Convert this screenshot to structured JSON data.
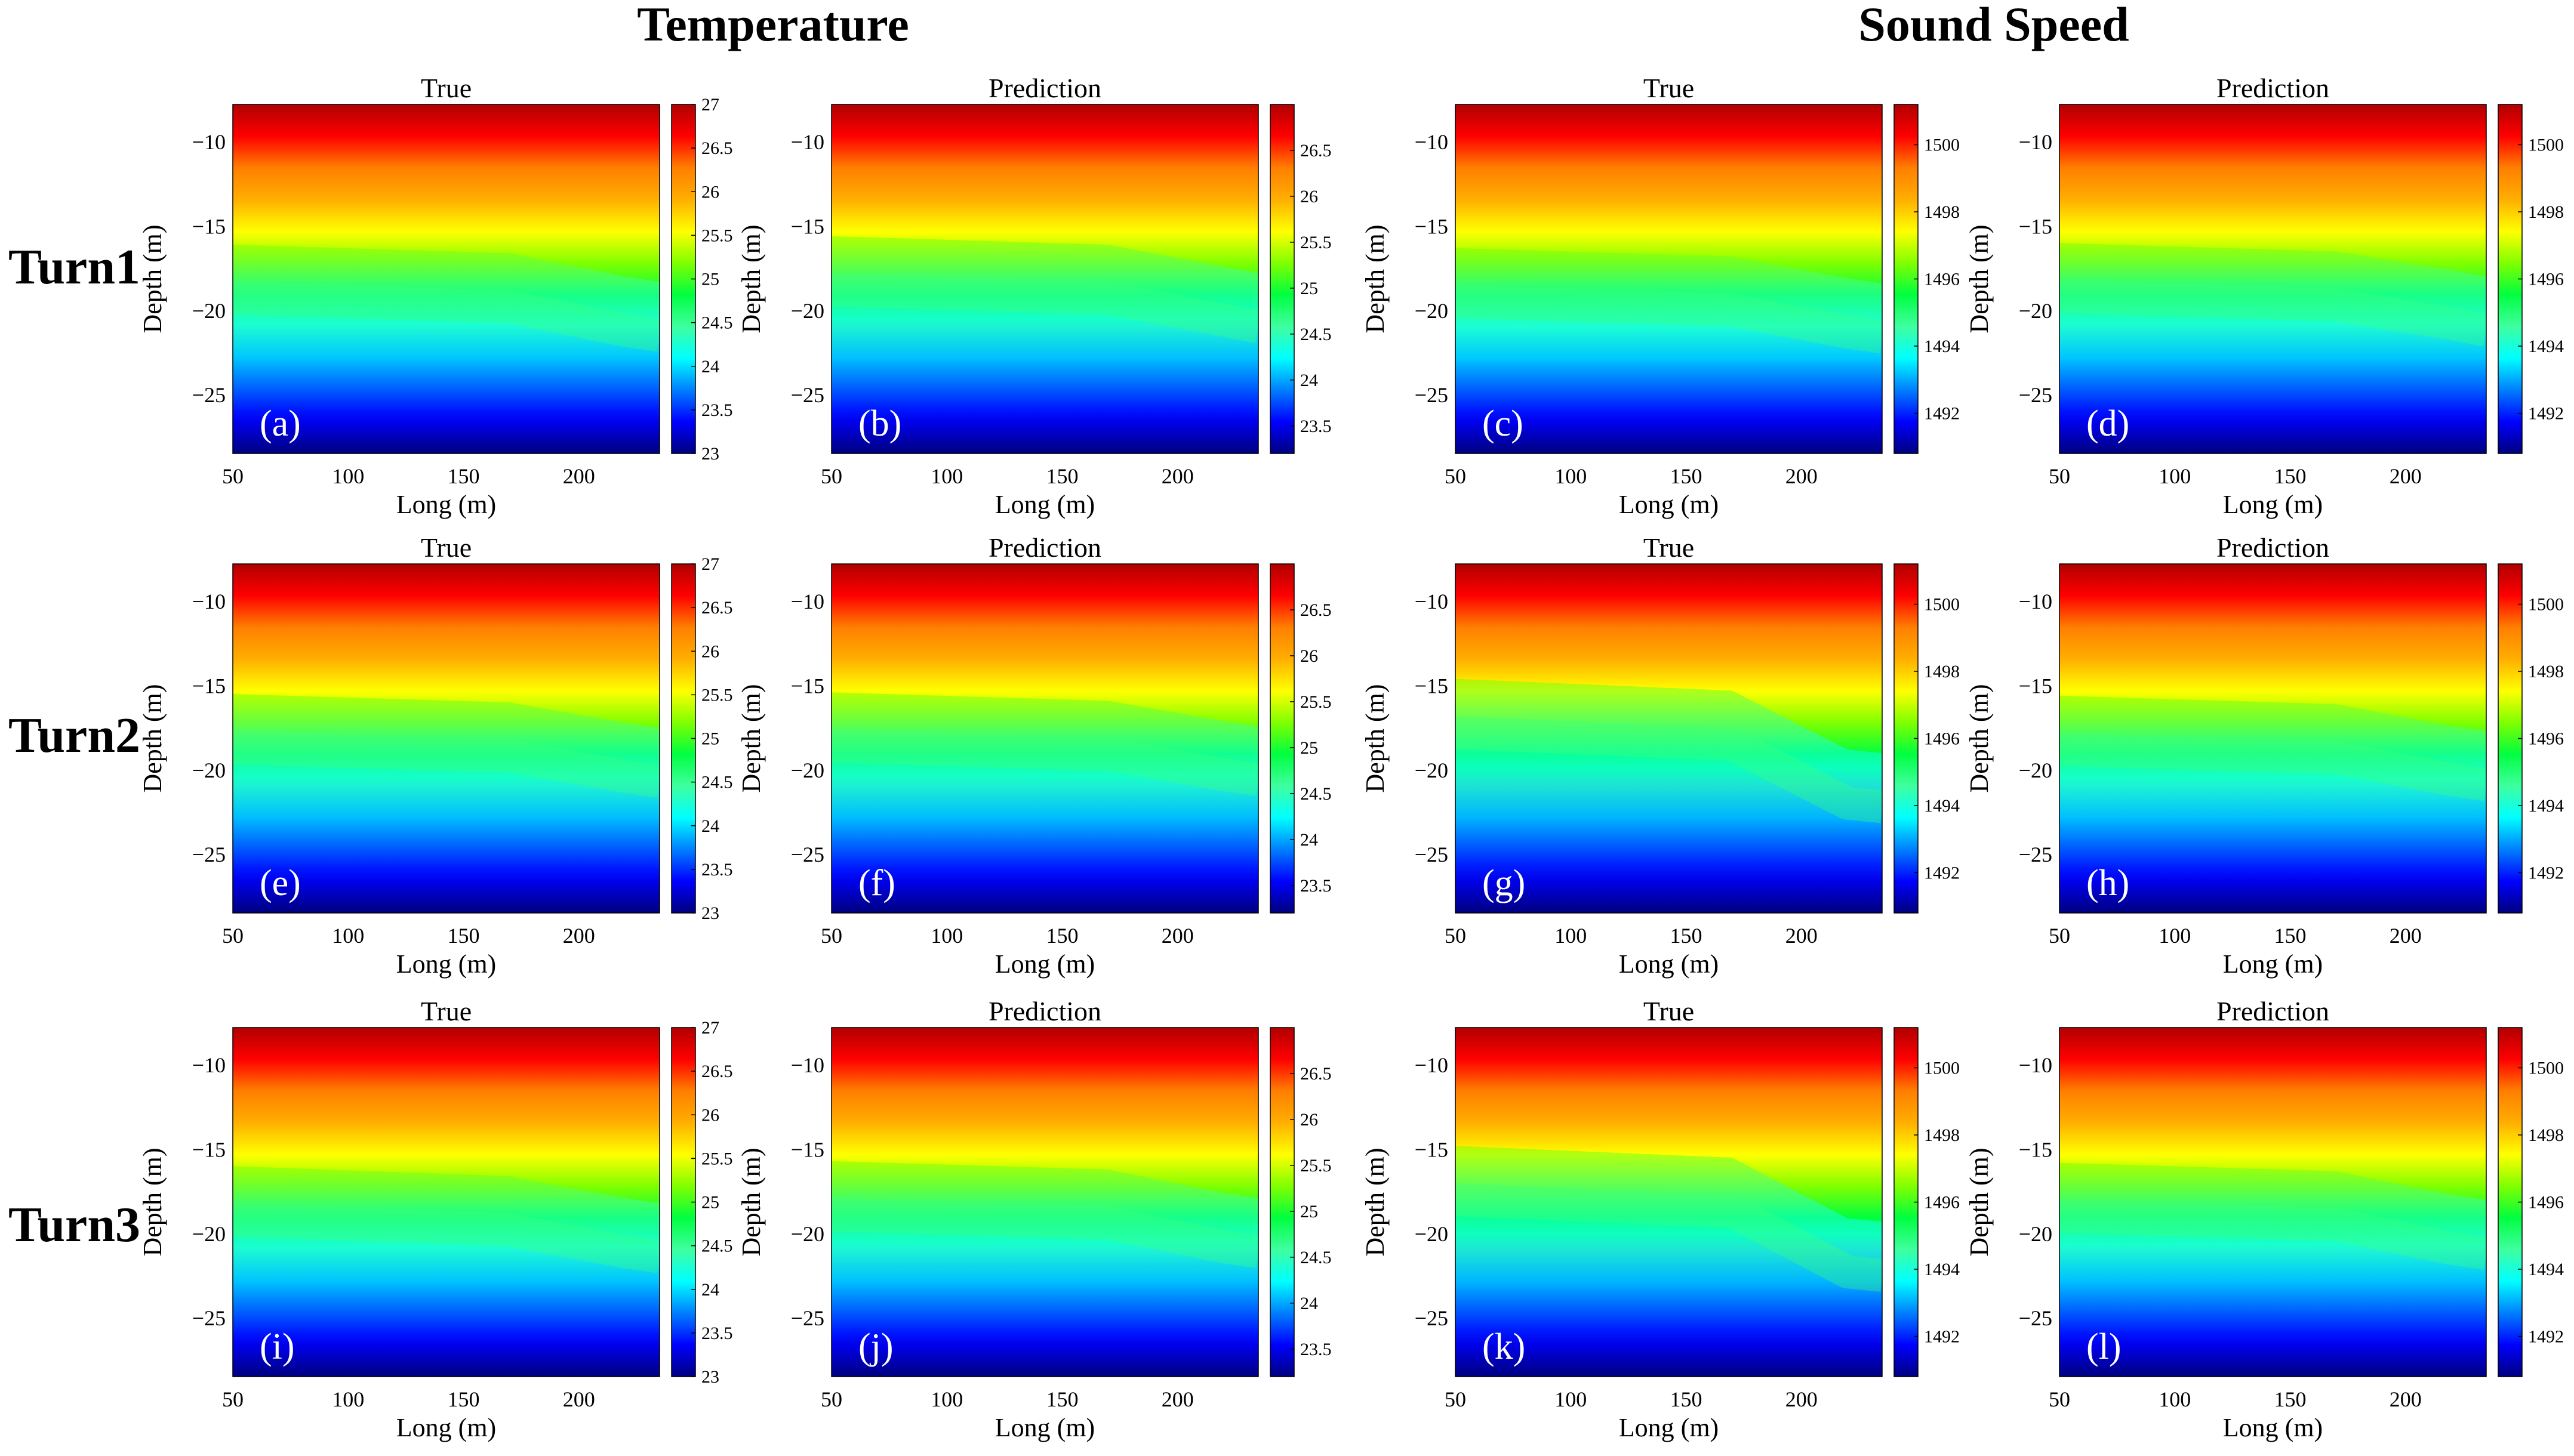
{
  "figure": {
    "group_titles": [
      "Temperature",
      "Sound Speed"
    ],
    "row_labels": [
      "Turn1",
      "Turn2",
      "Turn3"
    ],
    "colormap": [
      "#00007f",
      "#0000ff",
      "#007fff",
      "#00ffff",
      "#3fff9f",
      "#00ff40",
      "#7fff00",
      "#ffff00",
      "#ffaf00",
      "#ff7f00",
      "#ff0000",
      "#b00000"
    ]
  },
  "chart_data": [
    {
      "type": "heatmap",
      "id": "a",
      "letter": "(a)",
      "title": "True",
      "quantity": "Temperature",
      "turn": "Turn1",
      "xlabel": "Long (m)",
      "ylabel": "Depth (m)",
      "xlim": [
        50,
        235
      ],
      "ylim": [
        -28.5,
        -7.8
      ],
      "xticks": [
        50,
        100,
        150,
        200
      ],
      "yticks": [
        -10,
        -15,
        -20,
        -25
      ],
      "clim": [
        23,
        27
      ],
      "cticks": [
        23,
        23.5,
        24,
        24.5,
        25,
        25.5,
        26,
        26.5,
        27
      ],
      "front_depth": {
        "x": [
          50,
          170,
          220,
          235
        ],
        "y": [
          -19.3,
          -19.8,
          -21.2,
          -21.5
        ]
      }
    },
    {
      "type": "heatmap",
      "id": "b",
      "letter": "(b)",
      "title": "Prediction",
      "quantity": "Temperature",
      "turn": "Turn1",
      "xlabel": "Long (m)",
      "ylabel": "Depth (m)",
      "xlim": [
        50,
        235
      ],
      "ylim": [
        -28.5,
        -7.8
      ],
      "xticks": [
        50,
        100,
        150,
        200
      ],
      "yticks": [
        -10,
        -15,
        -20,
        -25
      ],
      "clim": [
        23.2,
        27
      ],
      "cticks": [
        23.5,
        24,
        24.5,
        25,
        25.5,
        26,
        26.5
      ],
      "front_depth": {
        "x": [
          50,
          170,
          220,
          235
        ],
        "y": [
          -18.8,
          -19.3,
          -20.6,
          -21.0
        ]
      }
    },
    {
      "type": "heatmap",
      "id": "c",
      "letter": "(c)",
      "title": "True",
      "quantity": "Sound Speed",
      "turn": "Turn1",
      "xlabel": "Long (m)",
      "ylabel": "Depth (m)",
      "xlim": [
        50,
        235
      ],
      "ylim": [
        -28.5,
        -7.8
      ],
      "xticks": [
        50,
        100,
        150,
        200
      ],
      "yticks": [
        -10,
        -15,
        -20,
        -25
      ],
      "clim": [
        1490.8,
        1501.2
      ],
      "cticks": [
        1492,
        1494,
        1496,
        1498,
        1500
      ],
      "front_depth": {
        "x": [
          50,
          170,
          220,
          235
        ],
        "y": [
          -19.5,
          -20.0,
          -21.3,
          -21.6
        ]
      }
    },
    {
      "type": "heatmap",
      "id": "d",
      "letter": "(d)",
      "title": "Prediction",
      "quantity": "Sound Speed",
      "turn": "Turn1",
      "xlabel": "Long (m)",
      "ylabel": "Depth (m)",
      "xlim": [
        50,
        235
      ],
      "ylim": [
        -28.5,
        -7.8
      ],
      "xticks": [
        50,
        100,
        150,
        200
      ],
      "yticks": [
        -10,
        -15,
        -20,
        -25
      ],
      "clim": [
        1490.8,
        1501.2
      ],
      "cticks": [
        1492,
        1494,
        1496,
        1498,
        1500
      ],
      "front_depth": {
        "x": [
          50,
          170,
          220,
          235
        ],
        "y": [
          -19.2,
          -19.7,
          -20.8,
          -21.2
        ]
      }
    },
    {
      "type": "heatmap",
      "id": "e",
      "letter": "(e)",
      "title": "True",
      "quantity": "Temperature",
      "turn": "Turn2",
      "xlabel": "Long (m)",
      "ylabel": "Depth (m)",
      "xlim": [
        50,
        235
      ],
      "ylim": [
        -28.5,
        -7.8
      ],
      "xticks": [
        50,
        100,
        150,
        200
      ],
      "yticks": [
        -10,
        -15,
        -20,
        -25
      ],
      "clim": [
        23,
        27
      ],
      "cticks": [
        23,
        23.5,
        24,
        24.5,
        25,
        25.5,
        26,
        26.5,
        27
      ],
      "front_depth": {
        "x": [
          50,
          170,
          220,
          235
        ],
        "y": [
          -18.7,
          -19.2,
          -20.4,
          -20.7
        ]
      }
    },
    {
      "type": "heatmap",
      "id": "f",
      "letter": "(f)",
      "title": "Prediction",
      "quantity": "Temperature",
      "turn": "Turn2",
      "xlabel": "Long (m)",
      "ylabel": "Depth (m)",
      "xlim": [
        50,
        235
      ],
      "ylim": [
        -28.5,
        -7.8
      ],
      "xticks": [
        50,
        100,
        150,
        200
      ],
      "yticks": [
        -10,
        -15,
        -20,
        -25
      ],
      "clim": [
        23.2,
        27
      ],
      "cticks": [
        23.5,
        24,
        24.5,
        25,
        25.5,
        26,
        26.5
      ],
      "front_depth": {
        "x": [
          50,
          170,
          220,
          235
        ],
        "y": [
          -18.6,
          -19.1,
          -20.3,
          -20.6
        ]
      }
    },
    {
      "type": "heatmap",
      "id": "g",
      "letter": "(g)",
      "title": "True",
      "quantity": "Sound Speed",
      "turn": "Turn2",
      "xlabel": "Long (m)",
      "ylabel": "Depth (m)",
      "xlim": [
        50,
        235
      ],
      "ylim": [
        -28.5,
        -7.8
      ],
      "xticks": [
        50,
        100,
        150,
        200
      ],
      "yticks": [
        -10,
        -15,
        -20,
        -25
      ],
      "clim": [
        1490.8,
        1501.2
      ],
      "cticks": [
        1492,
        1494,
        1496,
        1498,
        1500
      ],
      "front_depth": {
        "x": [
          50,
          170,
          220,
          235
        ],
        "y": [
          -17.8,
          -18.5,
          -22.0,
          -22.2
        ]
      }
    },
    {
      "type": "heatmap",
      "id": "h",
      "letter": "(h)",
      "title": "Prediction",
      "quantity": "Sound Speed",
      "turn": "Turn2",
      "xlabel": "Long (m)",
      "ylabel": "Depth (m)",
      "xlim": [
        50,
        235
      ],
      "ylim": [
        -28.5,
        -7.8
      ],
      "xticks": [
        50,
        100,
        150,
        200
      ],
      "yticks": [
        -10,
        -15,
        -20,
        -25
      ],
      "clim": [
        1490.8,
        1501.2
      ],
      "cticks": [
        1492,
        1494,
        1496,
        1498,
        1500
      ],
      "front_depth": {
        "x": [
          50,
          170,
          220,
          235
        ],
        "y": [
          -18.8,
          -19.3,
          -20.6,
          -20.9
        ]
      }
    },
    {
      "type": "heatmap",
      "id": "i",
      "letter": "(i)",
      "title": "True",
      "quantity": "Temperature",
      "turn": "Turn3",
      "xlabel": "Long (m)",
      "ylabel": "Depth (m)",
      "xlim": [
        50,
        235
      ],
      "ylim": [
        -28.5,
        -7.8
      ],
      "xticks": [
        50,
        100,
        150,
        200
      ],
      "yticks": [
        -10,
        -15,
        -20,
        -25
      ],
      "clim": [
        23,
        27
      ],
      "cticks": [
        23,
        23.5,
        24,
        24.5,
        25,
        25.5,
        26,
        26.5,
        27
      ],
      "front_depth": {
        "x": [
          50,
          170,
          220,
          235
        ],
        "y": [
          -19.2,
          -19.8,
          -21.1,
          -21.4
        ]
      }
    },
    {
      "type": "heatmap",
      "id": "j",
      "letter": "(j)",
      "title": "Prediction",
      "quantity": "Temperature",
      "turn": "Turn3",
      "xlabel": "Long (m)",
      "ylabel": "Depth (m)",
      "xlim": [
        50,
        235
      ],
      "ylim": [
        -28.5,
        -7.8
      ],
      "xticks": [
        50,
        100,
        150,
        200
      ],
      "yticks": [
        -10,
        -15,
        -20,
        -25
      ],
      "clim": [
        23.2,
        27
      ],
      "cticks": [
        23.5,
        24,
        24.5,
        25,
        25.5,
        26,
        26.5
      ],
      "front_depth": {
        "x": [
          50,
          170,
          220,
          235
        ],
        "y": [
          -18.9,
          -19.4,
          -20.8,
          -21.1
        ]
      }
    },
    {
      "type": "heatmap",
      "id": "k",
      "letter": "(k)",
      "title": "True",
      "quantity": "Sound Speed",
      "turn": "Turn3",
      "xlabel": "Long (m)",
      "ylabel": "Depth (m)",
      "xlim": [
        50,
        235
      ],
      "ylim": [
        -28.5,
        -7.8
      ],
      "xticks": [
        50,
        100,
        150,
        200
      ],
      "yticks": [
        -10,
        -15,
        -20,
        -25
      ],
      "clim": [
        1490.8,
        1501.2
      ],
      "cticks": [
        1492,
        1494,
        1496,
        1498,
        1500
      ],
      "front_depth": {
        "x": [
          50,
          170,
          220,
          235
        ],
        "y": [
          -18.0,
          -18.7,
          -22.3,
          -22.5
        ]
      }
    },
    {
      "type": "heatmap",
      "id": "l",
      "letter": "(l)",
      "title": "Prediction",
      "quantity": "Sound Speed",
      "turn": "Turn3",
      "xlabel": "Long (m)",
      "ylabel": "Depth (m)",
      "xlim": [
        50,
        235
      ],
      "ylim": [
        -28.5,
        -7.8
      ],
      "xticks": [
        50,
        100,
        150,
        200
      ],
      "yticks": [
        -10,
        -15,
        -20,
        -25
      ],
      "clim": [
        1490.8,
        1501.2
      ],
      "cticks": [
        1492,
        1494,
        1496,
        1498,
        1500
      ],
      "front_depth": {
        "x": [
          50,
          170,
          220,
          235
        ],
        "y": [
          -19.0,
          -19.5,
          -20.9,
          -21.2
        ]
      }
    }
  ]
}
